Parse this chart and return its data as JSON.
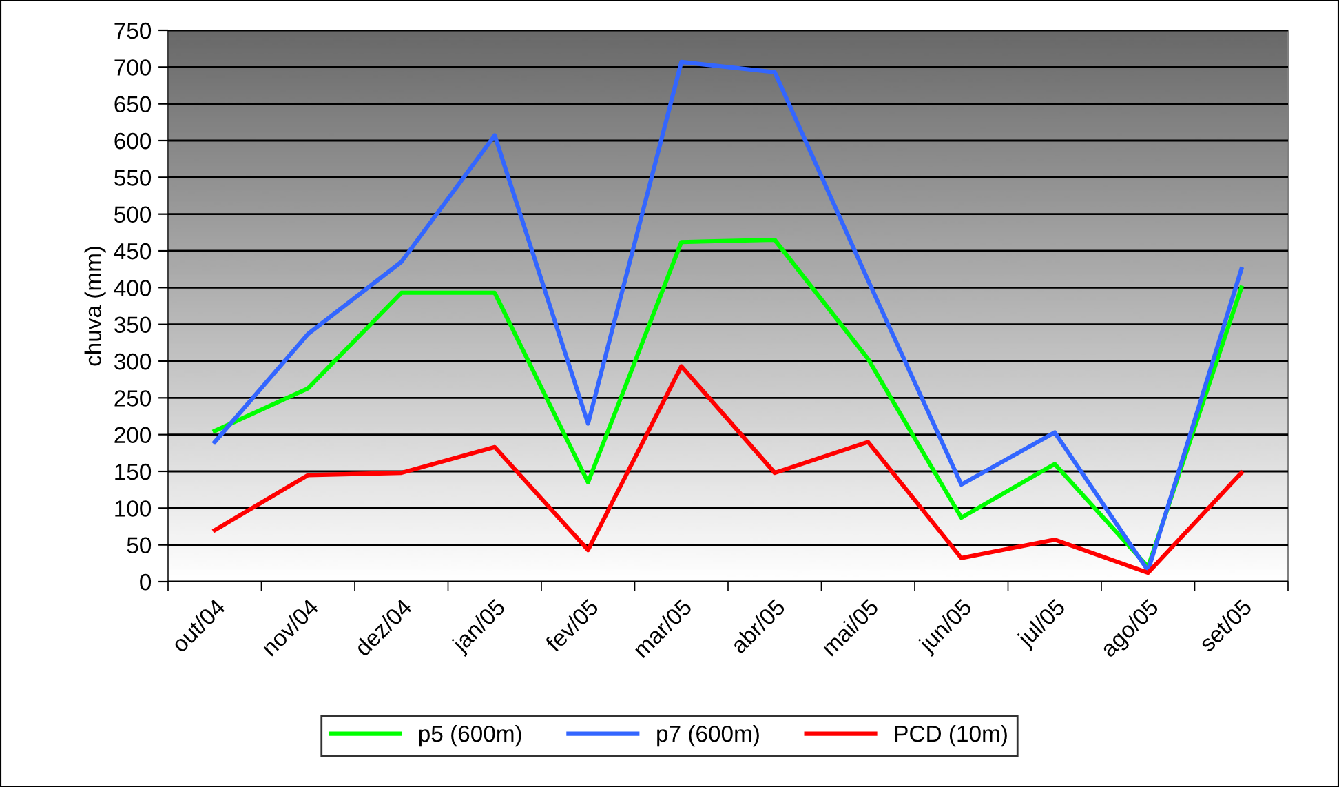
{
  "chart_data": {
    "type": "line",
    "ylabel": "chuva (mm)",
    "categories": [
      "out/04",
      "nov/04",
      "dez/04",
      "jan/05",
      "fev/05",
      "mar/05",
      "abr/05",
      "mai/05",
      "jun/05",
      "jul/05",
      "ago/05",
      "set/05"
    ],
    "series": [
      {
        "name": "p5 (600m)",
        "color": "#00ff00",
        "values": [
          205,
          263,
          393,
          393,
          135,
          462,
          465,
          303,
          87,
          160,
          20,
          400
        ]
      },
      {
        "name": "p7 (600m)",
        "color": "#3366ff",
        "values": [
          190,
          337,
          435,
          607,
          215,
          707,
          693,
          410,
          132,
          203,
          15,
          425
        ]
      },
      {
        "name": "PCD (10m)",
        "color": "#ff0000",
        "values": [
          70,
          145,
          148,
          183,
          43,
          293,
          148,
          190,
          32,
          57,
          12,
          148
        ]
      }
    ],
    "ylim": [
      0,
      750
    ],
    "yticks": [
      0,
      50,
      100,
      150,
      200,
      250,
      300,
      350,
      400,
      450,
      500,
      550,
      600,
      650,
      700,
      750
    ],
    "grid": "y",
    "legend": "bottom",
    "marker": "none",
    "line_style": "solid"
  }
}
